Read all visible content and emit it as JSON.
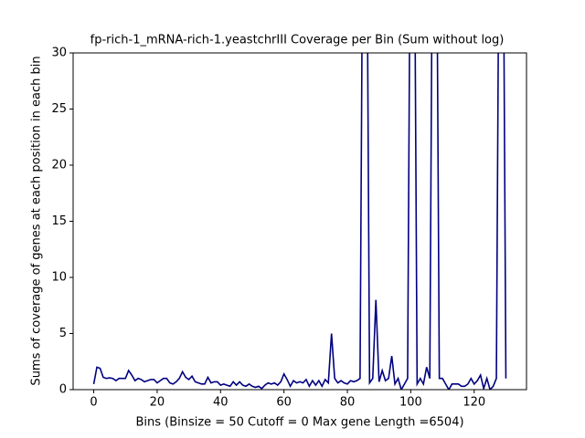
{
  "chart_data": {
    "type": "line",
    "title": "fp-rich-1_mRNA-rich-1.yeastchrIII Coverage per Bin (Sum without log)",
    "x_label": "Bins  (Binsize = 50 Cutoff = 0 Max gene Length =6504)",
    "y_label": "Sums of coverage of genes at each position in each bin",
    "x": [
      0,
      1,
      2,
      3,
      4,
      5,
      6,
      7,
      8,
      9,
      10,
      11,
      12,
      13,
      14,
      15,
      16,
      17,
      18,
      19,
      20,
      21,
      22,
      23,
      24,
      25,
      26,
      27,
      28,
      29,
      30,
      31,
      32,
      33,
      34,
      35,
      36,
      37,
      38,
      39,
      40,
      41,
      42,
      43,
      44,
      45,
      46,
      47,
      48,
      49,
      50,
      51,
      52,
      53,
      54,
      55,
      56,
      57,
      58,
      59,
      60,
      61,
      62,
      63,
      64,
      65,
      66,
      67,
      68,
      69,
      70,
      71,
      72,
      73,
      74,
      75,
      76,
      77,
      78,
      79,
      80,
      81,
      82,
      83,
      84,
      85,
      86,
      87,
      88,
      89,
      90,
      91,
      92,
      93,
      94,
      95,
      96,
      97,
      98,
      99,
      100,
      101,
      102,
      103,
      104,
      105,
      106,
      107,
      108,
      109,
      110,
      111,
      112,
      113,
      114,
      115,
      116,
      117,
      118,
      119,
      120,
      121,
      122,
      123,
      124,
      125,
      126,
      127,
      128,
      129,
      130
    ],
    "series": [
      {
        "color": "#000080",
        "values": [
          0.5,
          2,
          1.9,
          1.1,
          1,
          1.05,
          1,
          0.8,
          1,
          1,
          1,
          1.7,
          1.3,
          0.8,
          1,
          0.9,
          0.7,
          0.8,
          0.9,
          0.9,
          0.6,
          0.8,
          1,
          1,
          0.6,
          0.5,
          0.7,
          1,
          1.6,
          1.1,
          0.9,
          1.2,
          0.7,
          0.6,
          0.5,
          0.5,
          1.1,
          0.6,
          0.7,
          0.7,
          0.4,
          0.5,
          0.4,
          0.3,
          0.7,
          0.4,
          0.7,
          0.4,
          0.3,
          0.5,
          0.3,
          0.2,
          0.3,
          0.1,
          0.4,
          0.6,
          0.5,
          0.6,
          0.4,
          0.7,
          1.4,
          0.9,
          0.3,
          0.8,
          0.6,
          0.7,
          0.6,
          0.9,
          0.3,
          0.8,
          0.4,
          0.8,
          0.3,
          0.9,
          0.6,
          5,
          1,
          0.6,
          0.8,
          0.6,
          0.5,
          0.8,
          0.7,
          0.8,
          1,
          50,
          50,
          0.6,
          1,
          8,
          0.7,
          1.7,
          0.8,
          1,
          3,
          0.5,
          1,
          0,
          0.5,
          1,
          50,
          50,
          0.5,
          1,
          0.5,
          2,
          1,
          50,
          50,
          1,
          1,
          0.5,
          0,
          0.5,
          0.5,
          0.5,
          0.3,
          0.3,
          0.5,
          1,
          0.5,
          0.8,
          1.3,
          0.1,
          1,
          0,
          0.3,
          1,
          50,
          50,
          1
        ]
      }
    ],
    "xlim": [
      -6.5,
      136.5
    ],
    "xticks": [
      0,
      20,
      40,
      60,
      80,
      100,
      120
    ],
    "ylim": [
      0,
      30
    ],
    "yticks": [
      0,
      5,
      10,
      15,
      20,
      25,
      30
    ]
  }
}
